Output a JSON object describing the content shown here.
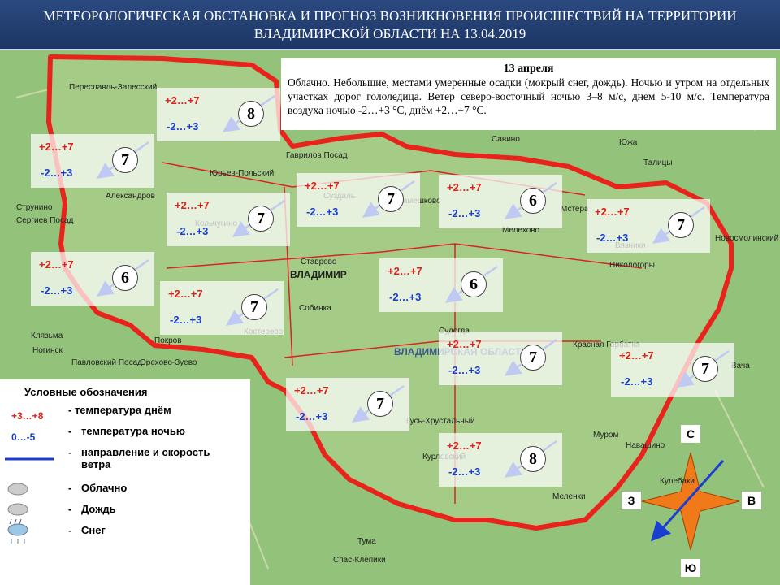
{
  "header": {
    "title_line1": "МЕТЕОРОЛОГИЧЕСКАЯ ОБСТАНОВКА И ПРОГНОЗ ВОЗНИКНОВЕНИЯ ПРОИСШЕСТВИЙ НА ТЕРРИТОРИИ",
    "title_line2": "ВЛАДИМИРСКОЙ ОБЛАСТИ НА 13.04.2019"
  },
  "forecast": {
    "date": "13 апреля",
    "text": "Облачно. Небольшие, местами умеренные осадки (мокрый снег, дождь). Ночью и утром на отдельных участках дорог гололедица.  Ветер северо-восточный ночью 3–8 м/с, днем 5-10 м/с. Температура воздуха ночью -2…+3 °С, днём +2…+7 °С."
  },
  "districts": [
    {
      "day": "+2…+7",
      "night": "-2…+3",
      "wind": 8
    },
    {
      "day": "+2…+7",
      "night": "-2…+3",
      "wind": 7
    },
    {
      "day": "+2…+7",
      "night": "-2…+3",
      "wind": 7
    },
    {
      "day": "+2…+7",
      "night": "-2…+3",
      "wind": 7
    },
    {
      "day": "+2…+7",
      "night": "-2…+3",
      "wind": 6
    },
    {
      "day": "+2…+7",
      "night": "-2…+3",
      "wind": 7
    },
    {
      "day": "+2…+7",
      "night": "-2…+3",
      "wind": 6
    },
    {
      "day": "+2…+7",
      "night": "-2…+3",
      "wind": 7
    },
    {
      "day": "+2…+7",
      "night": "-2…+3",
      "wind": 6
    },
    {
      "day": "+2…+7",
      "night": "-2…+3",
      "wind": 7
    },
    {
      "day": "+2…+7",
      "night": "-2…+3",
      "wind": 7
    },
    {
      "day": "+2…+7",
      "night": "-2…+3",
      "wind": 7
    },
    {
      "day": "+2…+7",
      "night": "-2…+3",
      "wind": 8
    }
  ],
  "legend": {
    "title": "Условные  обозначения",
    "day_sample": "+3…+8",
    "night_sample": "0…-5",
    "items": [
      "- температура днём",
      "температура ночью",
      "направление и скорость ветра",
      "Облачно",
      "Дождь",
      "Снег"
    ]
  },
  "compass": {
    "north": "С",
    "south": "Ю",
    "west": "З",
    "east": "В"
  },
  "places": [
    "Переславль-Залесский",
    "Юрьев-Польский",
    "Гаврилов Посад",
    "Савино",
    "Южа",
    "Талицы",
    "Александров",
    "Струнино",
    "Сергиев Посад",
    "Кольчугино",
    "Суздаль",
    "Камешково",
    "Мстера",
    "Мелехово",
    "Вязники",
    "Никологоры",
    "Ставрово",
    "ВЛАДИМИР",
    "Собинка",
    "Костерево",
    "Покров",
    "Ногинск",
    "Павловский Посад",
    "Орехово-Зуево",
    "Судогда",
    "Красная Горбатка",
    "Вача",
    "Гусь-Хрустальный",
    "Муром",
    "Навашино",
    "Курловский",
    "Меленки",
    "Кулебаки",
    "Тума",
    "Спас-Клепики",
    "ВЛАДИМИРСКАЯ ОБЛАСТЬ",
    "Клязьма",
    "Новосмолинский"
  ]
}
